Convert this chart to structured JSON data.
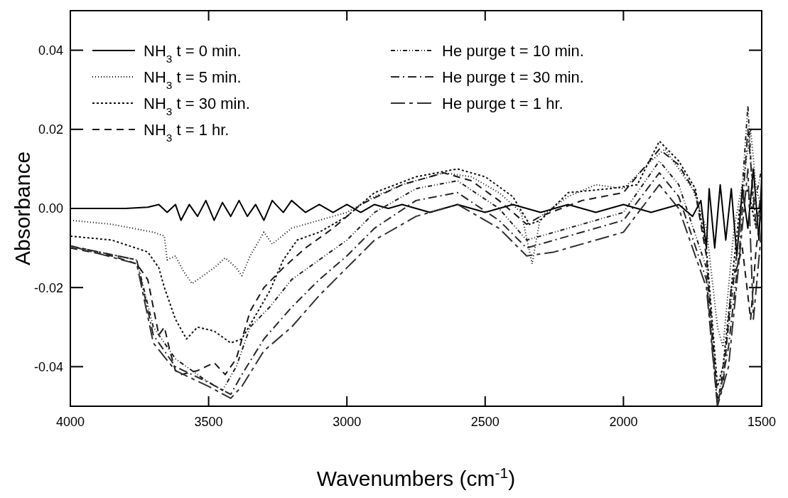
{
  "chart_data": {
    "type": "line",
    "xlabel": "Wavenumbers (cm$^{-1}$)",
    "ylabel": "Absorbance",
    "xlim": [
      4000,
      1500
    ],
    "xticks": [
      4000,
      3500,
      3000,
      2500,
      2000,
      1500
    ],
    "ylim": [
      -0.05,
      0.05
    ],
    "yticks": [
      {
        "value": -0.04,
        "label": "-0.04"
      },
      {
        "value": -0.02,
        "label": "-0.02"
      },
      {
        "value": 0,
        "label": "0.00"
      },
      {
        "value": 0.02,
        "label": "0.02"
      },
      {
        "value": 0.04,
        "label": "0.04"
      }
    ],
    "grid": false,
    "legend": "top left",
    "marker": "none",
    "series": [
      {
        "name": "NH$_{3}$ t = 0 min.",
        "color": "#000000",
        "line_style": "solid",
        "x": [
          4000,
          3800,
          3720,
          3680,
          3650,
          3620,
          3600,
          3570,
          3540,
          3510,
          3480,
          3450,
          3420,
          3390,
          3360,
          3330,
          3300,
          3270,
          3230,
          3200,
          3150,
          3100,
          3050,
          3000,
          2950,
          2900,
          2850,
          2800,
          2700,
          2600,
          2500,
          2400,
          2300,
          2200,
          2100,
          2000,
          1900,
          1800,
          1750,
          1720,
          1700,
          1690,
          1670,
          1650,
          1630,
          1610,
          1590,
          1570,
          1550,
          1530,
          1510,
          1500
        ],
        "values": [
          0,
          0,
          0.0003,
          0.001,
          -0.001,
          0.001,
          -0.003,
          0.001,
          -0.002,
          0.002,
          -0.003,
          0.0015,
          -0.002,
          0.002,
          -0.002,
          0.001,
          -0.003,
          0.002,
          -0.001,
          0.002,
          -0.001,
          0.001,
          -0.001,
          0.001,
          -0.001,
          0.001,
          0,
          0.001,
          -0.001,
          0.001,
          -0.001,
          0.001,
          -0.001,
          0.001,
          -0.001,
          0.001,
          -0.001,
          0.001,
          -0.002,
          0.002,
          -0.01,
          0.005,
          -0.01,
          0.006,
          -0.008,
          0.005,
          -0.012,
          0.005,
          -0.005,
          0.01,
          -0.008,
          0.008
        ]
      },
      {
        "name": "NH$_{3}$ t = 5 min.",
        "color": "#080808",
        "line_style": "dotted",
        "x": [
          4000,
          3850,
          3700,
          3660,
          3650,
          3620,
          3590,
          3560,
          3520,
          3480,
          3440,
          3400,
          3380,
          3350,
          3300,
          3270,
          3200,
          3100,
          3000,
          2900,
          2800,
          2650,
          2550,
          2450,
          2370,
          2330,
          2300,
          2200,
          2100,
          2000,
          1900,
          1850,
          1800,
          1750,
          1700,
          1660,
          1640,
          1620,
          1600,
          1560,
          1540,
          1520,
          1500
        ],
        "values": [
          -0.003,
          -0.004,
          -0.006,
          -0.007,
          -0.013,
          -0.012,
          -0.016,
          -0.019,
          -0.017,
          -0.015,
          -0.0125,
          -0.015,
          -0.017,
          -0.012,
          -0.006,
          -0.009,
          -0.005,
          -0.003,
          -0.001,
          0.003,
          0.006,
          0.009,
          0.008,
          0.004,
          -0.001,
          -0.014,
          -0.002,
          0.003,
          0.006,
          0.005,
          0.012,
          0.015,
          0.01,
          0.005,
          -0.005,
          -0.03,
          -0.035,
          -0.02,
          -0.005,
          0.01,
          0.02,
          0.005,
          0
        ]
      },
      {
        "name": "NH$_{3}$ t = 30 min.",
        "color": "#101010",
        "line_style": "dashed_short",
        "x": [
          4000,
          3850,
          3720,
          3680,
          3660,
          3620,
          3580,
          3540,
          3480,
          3420,
          3380,
          3330,
          3280,
          3230,
          3180,
          3100,
          3000,
          2900,
          2750,
          2600,
          2500,
          2400,
          2340,
          2300,
          2200,
          2050,
          1950,
          1870,
          1800,
          1740,
          1700,
          1660,
          1640,
          1610,
          1580,
          1550,
          1520,
          1500
        ],
        "values": [
          -0.007,
          -0.008,
          -0.011,
          -0.015,
          -0.02,
          -0.028,
          -0.033,
          -0.03,
          -0.031,
          -0.034,
          -0.033,
          -0.027,
          -0.021,
          -0.013,
          -0.008,
          -0.006,
          -0.002,
          0.004,
          0.008,
          0.01,
          0.008,
          0.003,
          -0.004,
          -0.003,
          0.004,
          0.005,
          0.006,
          0.017,
          0.012,
          0.005,
          -0.01,
          -0.045,
          -0.04,
          -0.02,
          0,
          0.005,
          -0.005,
          0.003
        ]
      },
      {
        "name": "NH$_{3}$ t = 1 hr.",
        "color": "#181818",
        "line_style": "dashed",
        "x": [
          4000,
          3850,
          3760,
          3720,
          3700,
          3680,
          3660,
          3640,
          3620,
          3600,
          3540,
          3480,
          3440,
          3400,
          3350,
          3300,
          3230,
          3150,
          3050,
          2950,
          2800,
          2650,
          2550,
          2450,
          2350,
          2300,
          2150,
          2000,
          1870,
          1800,
          1740,
          1700,
          1660,
          1640,
          1610,
          1570,
          1540,
          1520,
          1500
        ],
        "values": [
          -0.01,
          -0.012,
          -0.014,
          -0.018,
          -0.025,
          -0.032,
          -0.03,
          -0.036,
          -0.041,
          -0.042,
          -0.041,
          -0.039,
          -0.042,
          -0.038,
          -0.026,
          -0.02,
          -0.015,
          -0.01,
          -0.005,
          0.001,
          0.006,
          0.009,
          0.007,
          0.002,
          -0.004,
          -0.002,
          0.002,
          0.004,
          0.015,
          0.011,
          0.004,
          -0.012,
          -0.048,
          -0.045,
          -0.02,
          -0.01,
          -0.028,
          -0.01,
          0
        ]
      },
      {
        "name": "He purge t = 10 min.",
        "color": "#202020",
        "line_style": "dashdotdot",
        "x": [
          4000,
          3760,
          3700,
          3620,
          3520,
          3450,
          3400,
          3350,
          3280,
          3200,
          3100,
          3000,
          2900,
          2750,
          2600,
          2450,
          2350,
          2250,
          2100,
          2000,
          1870,
          1800,
          1700,
          1660,
          1620,
          1580,
          1550,
          1530,
          1500
        ],
        "values": [
          -0.0095,
          -0.013,
          -0.03,
          -0.038,
          -0.043,
          -0.046,
          -0.04,
          -0.03,
          -0.025,
          -0.018,
          -0.013,
          -0.008,
          -0.001,
          0.005,
          0.007,
          0,
          -0.008,
          -0.006,
          -0.003,
          -0.001,
          0.012,
          0.006,
          -0.015,
          -0.05,
          -0.03,
          -0.005,
          0.026,
          0,
          0.01
        ]
      },
      {
        "name": "He purge t = 30 min.",
        "color": "#282828",
        "line_style": "dashdot",
        "x": [
          4000,
          3760,
          3700,
          3620,
          3500,
          3420,
          3380,
          3300,
          3200,
          3100,
          3000,
          2900,
          2750,
          2600,
          2450,
          2350,
          2250,
          2100,
          2000,
          1870,
          1800,
          1700,
          1660,
          1620,
          1580,
          1550,
          1520,
          1500
        ],
        "values": [
          -0.0095,
          -0.013,
          -0.032,
          -0.04,
          -0.044,
          -0.047,
          -0.042,
          -0.033,
          -0.025,
          -0.018,
          -0.012,
          -0.005,
          0.002,
          0.004,
          -0.003,
          -0.01,
          -0.008,
          -0.005,
          -0.003,
          0.009,
          0.003,
          -0.018,
          -0.05,
          -0.035,
          -0.01,
          0.02,
          -0.005,
          0.005
        ]
      },
      {
        "name": "He purge t = 1 hr.",
        "color": "#303030",
        "line_style": "longdash_dash",
        "x": [
          4000,
          3760,
          3700,
          3620,
          3500,
          3420,
          3380,
          3300,
          3200,
          3100,
          3000,
          2900,
          2750,
          2600,
          2450,
          2350,
          2250,
          2100,
          2000,
          1870,
          1800,
          1700,
          1660,
          1620,
          1580,
          1550,
          1530,
          1500
        ],
        "values": [
          -0.0095,
          -0.014,
          -0.034,
          -0.041,
          -0.045,
          -0.048,
          -0.045,
          -0.036,
          -0.03,
          -0.022,
          -0.015,
          -0.008,
          -0.002,
          0.001,
          -0.005,
          -0.012,
          -0.011,
          -0.008,
          -0.006,
          0.006,
          0,
          -0.02,
          -0.05,
          -0.04,
          -0.012,
          0.01,
          -0.028,
          -0.005
        ]
      }
    ]
  }
}
